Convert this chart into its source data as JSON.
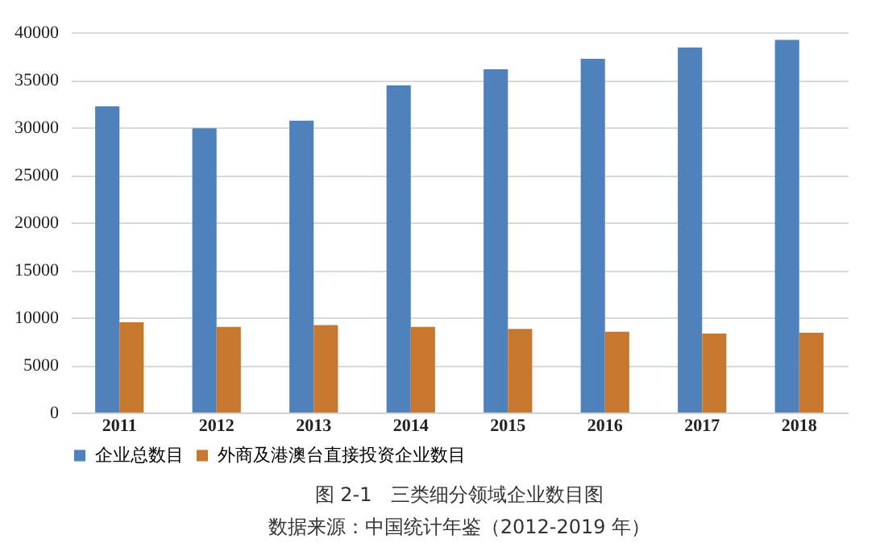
{
  "chart_data": {
    "type": "bar",
    "title": "图 2-1　三类细分领域企业数目图",
    "annotations": [
      "数据来源：中国统计年鉴（2012-2019 年）"
    ],
    "categories": [
      "2011",
      "2012",
      "2013",
      "2014",
      "2015",
      "2016",
      "2017",
      "2018"
    ],
    "series": [
      {
        "name": "企业总数目",
        "color": "#4f81bd",
        "values": [
          32200,
          29900,
          30700,
          34400,
          36100,
          37200,
          38400,
          39200
        ]
      },
      {
        "name": "外商及港澳台直接投资企业数目",
        "color": "#c8782e",
        "values": [
          9500,
          9000,
          9200,
          9000,
          8800,
          8500,
          8300,
          8400
        ]
      }
    ],
    "ylim": [
      0,
      40000
    ],
    "yticks": [
      0,
      5000,
      10000,
      15000,
      20000,
      25000,
      30000,
      35000,
      40000
    ],
    "grid": "y",
    "legend": "bottom"
  }
}
